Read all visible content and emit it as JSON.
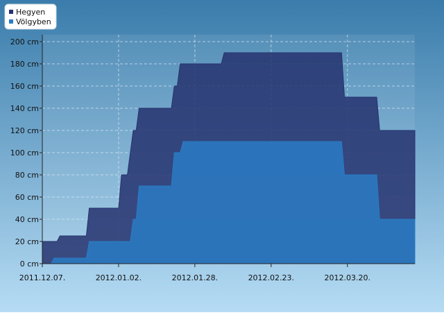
{
  "chart_data": {
    "type": "area",
    "x": [
      "2011.12.07",
      "2011.12.10",
      "2011.12.11",
      "2011.12.12",
      "2011.12.13",
      "2011.12.22",
      "2011.12.23",
      "2012.01.02",
      "2012.01.03",
      "2012.01.05",
      "2012.01.06",
      "2012.01.07",
      "2012.01.08",
      "2012.01.09",
      "2012.01.20",
      "2012.01.21",
      "2012.01.22",
      "2012.01.23",
      "2012.01.24",
      "2012.02.06",
      "2012.02.07",
      "2012.03.18",
      "2012.03.19",
      "2012.03.30",
      "2012.03.31",
      "2012.04.12"
    ],
    "series": [
      {
        "name": "Hegyen",
        "color": "#26336f",
        "values": [
          20,
          20,
          20,
          20,
          25,
          25,
          50,
          50,
          80,
          80,
          100,
          120,
          120,
          140,
          140,
          160,
          160,
          180,
          180,
          180,
          190,
          190,
          150,
          150,
          120,
          120
        ]
      },
      {
        "name": "Völgyben",
        "color": "#2a7bc4",
        "values": [
          0,
          0,
          5,
          5,
          5,
          5,
          20,
          20,
          20,
          20,
          20,
          40,
          40,
          70,
          70,
          100,
          100,
          100,
          110,
          110,
          110,
          110,
          80,
          80,
          40,
          40
        ]
      }
    ],
    "xlim": [
      "2011.12.07",
      "2012.04.12"
    ],
    "xticks": [
      {
        "value": "2011.12.07",
        "label": "2011.12.07."
      },
      {
        "value": "2012.01.02",
        "label": "2012.01.02."
      },
      {
        "value": "2012.01.28",
        "label": "2012.01.28."
      },
      {
        "value": "2012.02.23",
        "label": "2012.02.23."
      },
      {
        "value": "2012.03.20",
        "label": "2012.03.20."
      }
    ],
    "ylim": [
      0,
      200
    ],
    "yticks": [
      {
        "value": 0,
        "label": "0 cm"
      },
      {
        "value": 20,
        "label": "20 cm"
      },
      {
        "value": 40,
        "label": "40 cm"
      },
      {
        "value": 60,
        "label": "60 cm"
      },
      {
        "value": 80,
        "label": "80 cm"
      },
      {
        "value": 100,
        "label": "100 cm"
      },
      {
        "value": 120,
        "label": "120 cm"
      },
      {
        "value": 140,
        "label": "140 cm"
      },
      {
        "value": 160,
        "label": "160 cm"
      },
      {
        "value": 180,
        "label": "180 cm"
      },
      {
        "value": 200,
        "label": "200 cm"
      }
    ],
    "grid": true,
    "legend": "top-left"
  }
}
